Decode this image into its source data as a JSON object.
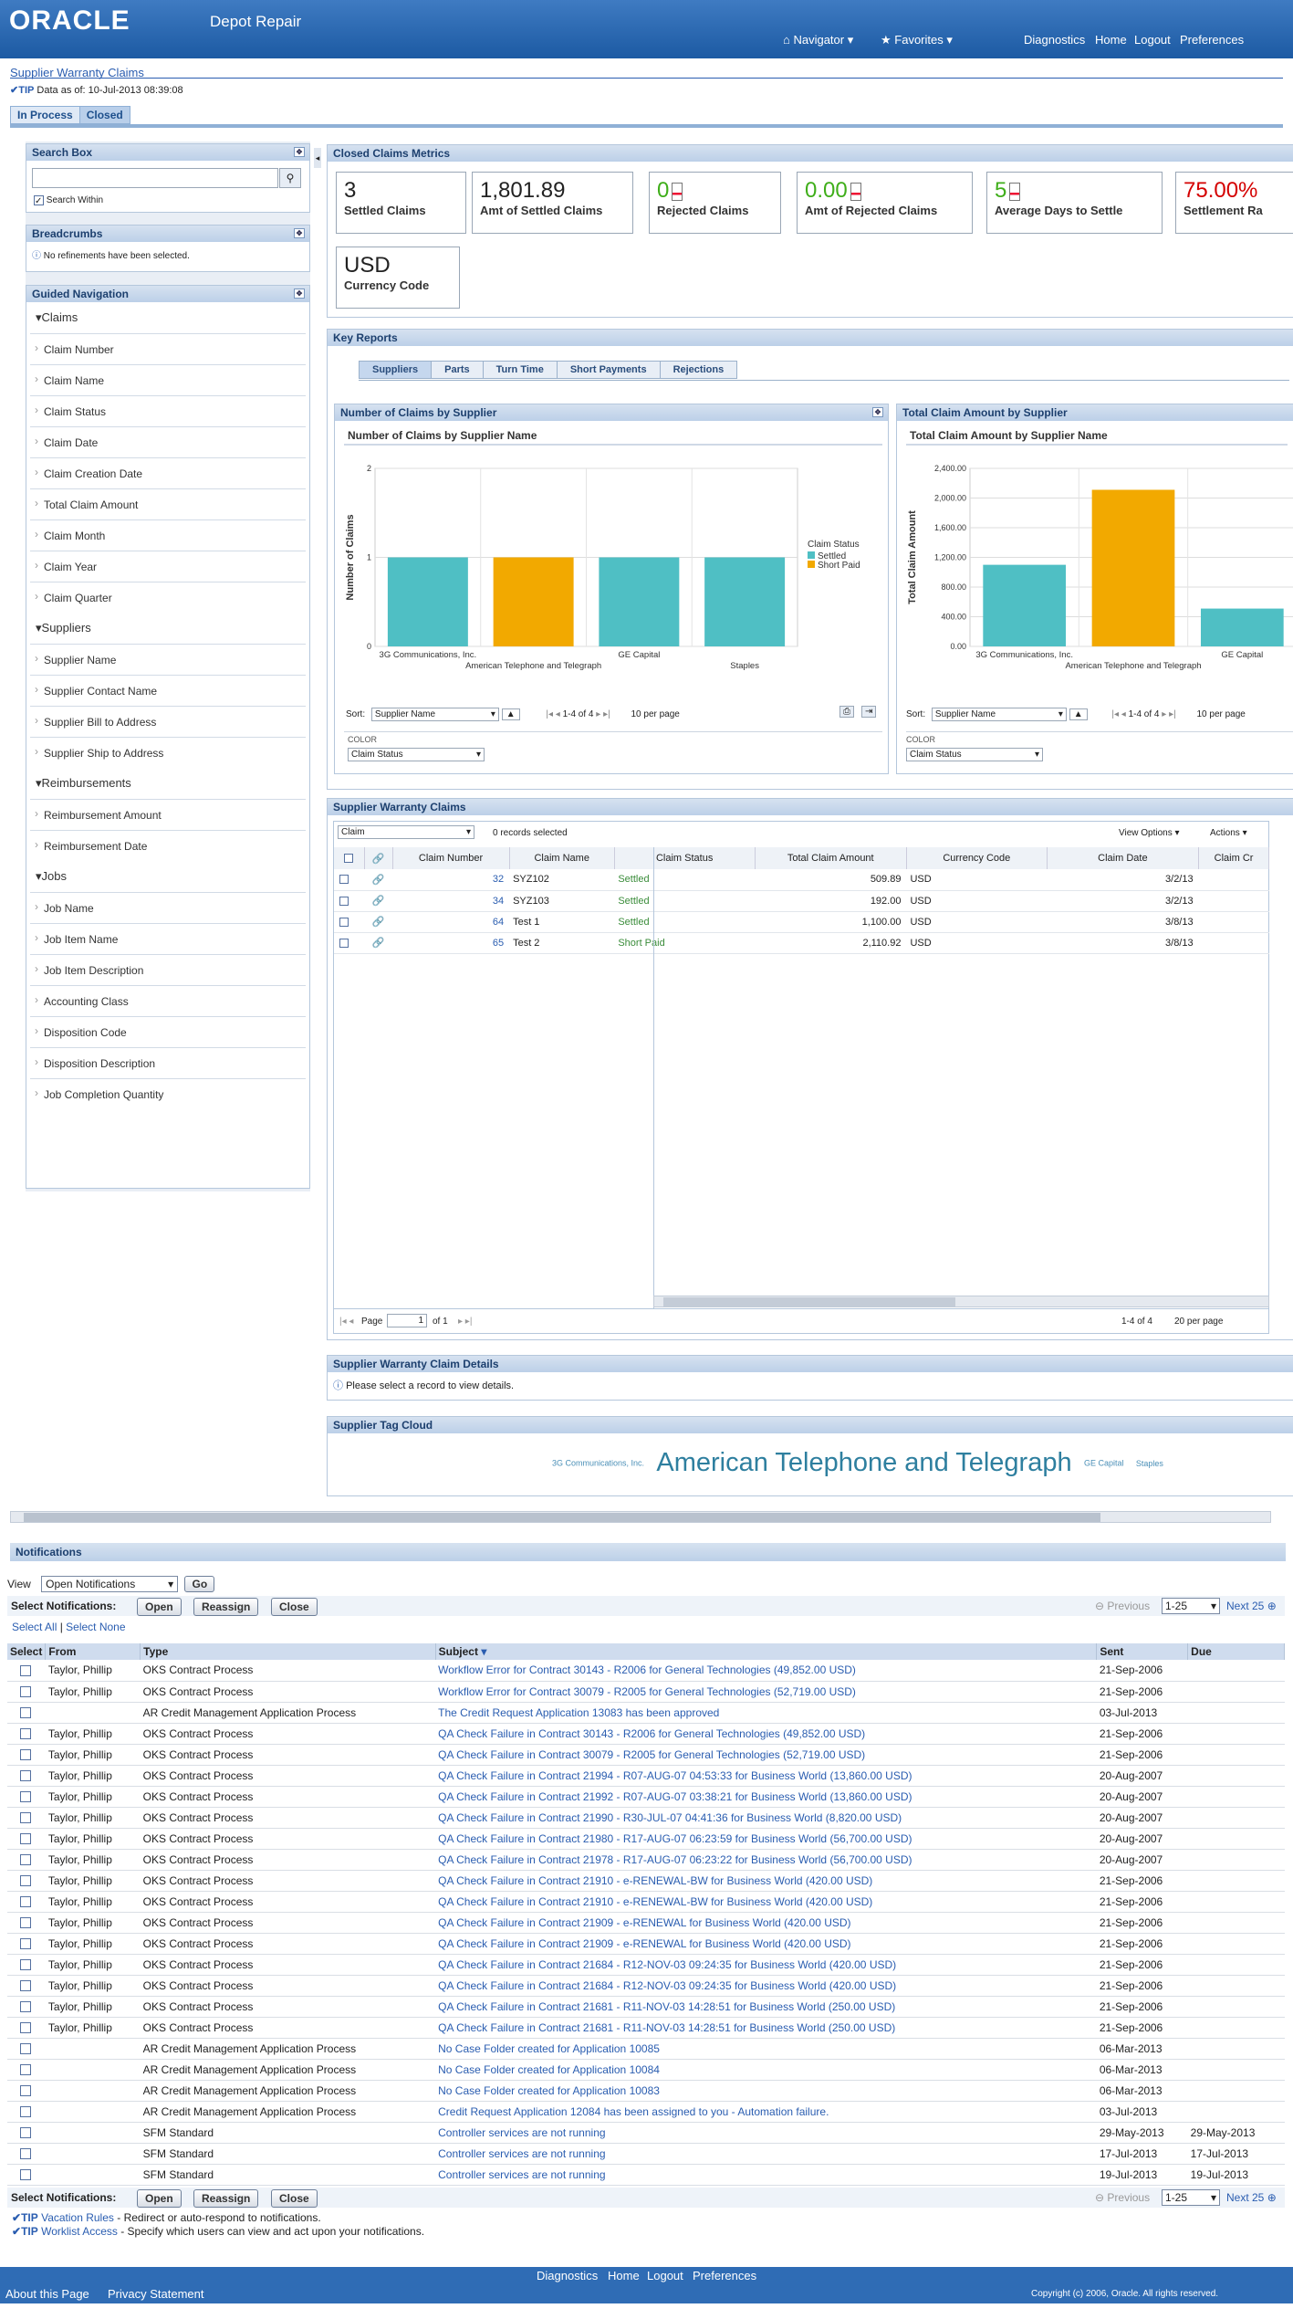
{
  "header": {
    "logo": "ORACLE",
    "app": "Depot Repair",
    "navigator": "Navigator",
    "favorites": "Favorites",
    "links": [
      "Diagnostics",
      "Home",
      "Logout",
      "Preferences"
    ]
  },
  "page": {
    "title": "Supplier Warranty Claims",
    "tip_label": "TIP",
    "tip": "Data as of:  10-Jul-2013 08:39:08",
    "tabs": [
      "In Process",
      "Closed"
    ]
  },
  "search": {
    "title": "Search Box",
    "search_within": "Search Within"
  },
  "breadcrumbs": {
    "title": "Breadcrumbs",
    "message": "No refinements have been selected."
  },
  "guided": {
    "title": "Guided Navigation",
    "groups": [
      {
        "name": "Claims",
        "items": [
          "Claim Number",
          "Claim Name",
          "Claim Status",
          "Claim Date",
          "Claim Creation Date",
          "Total Claim Amount",
          "Claim Month",
          "Claim Year",
          "Claim Quarter"
        ]
      },
      {
        "name": "Suppliers",
        "items": [
          "Supplier Name",
          "Supplier Contact Name",
          "Supplier Bill to Address",
          "Supplier Ship to Address"
        ]
      },
      {
        "name": "Reimbursements",
        "items": [
          "Reimbursement Amount",
          "Reimbursement Date"
        ]
      },
      {
        "name": "Jobs",
        "items": [
          "Job Name",
          "Job Item Name",
          "Job Item Description",
          "Accounting Class",
          "Disposition Code",
          "Disposition Description",
          "Job Completion Quantity"
        ]
      }
    ]
  },
  "metrics": {
    "title": "Closed Claims Metrics",
    "items": [
      {
        "value": "3",
        "label": "Settled Claims"
      },
      {
        "value": "1,801.89",
        "label": "Amt of Settled Claims"
      },
      {
        "value": "0",
        "label": "Rejected Claims"
      },
      {
        "value": "0.00",
        "label": "Amt of Rejected Claims"
      },
      {
        "value": "5",
        "label": "Average Days to Settle"
      },
      {
        "value": "75.00%",
        "label": "Settlement Ra"
      },
      {
        "value": "USD",
        "label": "Currency Code"
      }
    ]
  },
  "key_reports": {
    "title": "Key Reports",
    "tabs": [
      "Suppliers",
      "Parts",
      "Turn Time",
      "Short Payments",
      "Rejections"
    ]
  },
  "chart1": {
    "panel_title": "Number of Claims by Supplier",
    "sort_label": "Sort:",
    "sort_value": "Supplier Name",
    "pager": "1-4 of 4",
    "per_page": "10 per page",
    "color_label": "COLOR",
    "color_value": "Claim Status"
  },
  "chart2": {
    "panel_title": "Total Claim Amount by Supplier",
    "sort_label": "Sort:",
    "sort_value": "Supplier Name",
    "pager": "1-4 of 4",
    "per_page": "10 per page",
    "color_label": "COLOR",
    "color_value": "Claim Status"
  },
  "chart_data": [
    {
      "type": "bar",
      "title": "Number of Claims by Supplier Name",
      "xlabel": "Supplier Name",
      "ylabel": "Number of Claims",
      "ylim": [
        0,
        2
      ],
      "yticks": [
        "0",
        "1",
        "2"
      ],
      "categories": [
        "3G Communications, Inc.",
        "American Telephone and Telegraph",
        "GE Capital",
        "Staples"
      ],
      "values": [
        1,
        1,
        1,
        1
      ],
      "status": [
        "Settled",
        "Short Paid",
        "Settled",
        "Settled"
      ],
      "legend_title": "Claim Status",
      "legend": [
        {
          "name": "Settled",
          "color": "#4fbfc4"
        },
        {
          "name": "Short Paid",
          "color": "#f2a900"
        }
      ]
    },
    {
      "type": "bar",
      "title": "Total Claim Amount by Supplier Name",
      "xlabel": "Supplier Name",
      "ylabel": "Total Claim Amount",
      "ylim": [
        0,
        2400
      ],
      "yticks": [
        "0.00",
        "400.00",
        "800.00",
        "1,200.00",
        "1,600.00",
        "2,000.00",
        "2,400.00"
      ],
      "categories": [
        "3G Communications, Inc.",
        "American Telephone and Telegraph",
        "GE Capital"
      ],
      "values": [
        1100,
        2110.92,
        509.89
      ],
      "status": [
        "Settled",
        "Short Paid",
        "Settled"
      ]
    }
  ],
  "claims_table": {
    "title": "Supplier Warranty Claims",
    "filter": "Claim",
    "selected": "0 records selected",
    "view_options": "View Options",
    "actions": "Actions",
    "columns": [
      "Claim Number",
      "Claim Name",
      "Claim Status",
      "Total Claim Amount",
      "Currency Code",
      "Claim Date",
      "Claim Cr"
    ],
    "rows": [
      [
        "32",
        "SYZ102",
        "Settled",
        "509.89",
        "USD",
        "3/2/13"
      ],
      [
        "34",
        "SYZ103",
        "Settled",
        "192.00",
        "USD",
        "3/2/13"
      ],
      [
        "64",
        "Test 1",
        "Settled",
        "1,100.00",
        "USD",
        "3/8/13"
      ],
      [
        "65",
        "Test 2",
        "Short Paid",
        "2,110.92",
        "USD",
        "3/8/13"
      ]
    ],
    "page_label": "Page",
    "page_value": "1",
    "page_of": "of 1",
    "range": "1-4 of 4",
    "per_page": "20 per page"
  },
  "details": {
    "title": "Supplier Warranty Claim Details",
    "message": "Please select a record to view details."
  },
  "tagcloud": {
    "title": "Supplier Tag Cloud",
    "tags": [
      "3G Communications, Inc.",
      "American Telephone and Telegraph",
      "GE Capital",
      "Staples"
    ]
  },
  "notifications": {
    "title": "Notifications",
    "view_label": "View",
    "view_value": "Open Notifications",
    "go": "Go",
    "select_label": "Select Notifications:",
    "buttons": [
      "Open",
      "Reassign",
      "Close"
    ],
    "previous": "Previous",
    "range": "1-25",
    "next": "Next 25",
    "select_all": "Select All",
    "select_none": "Select None",
    "columns": [
      "Select",
      "From",
      "Type",
      "Subject",
      "Sent",
      "Due"
    ],
    "rows": [
      [
        "Taylor, Phillip",
        "OKS Contract Process",
        "Workflow Error for Contract 30143 - R2006 for General Technologies (49,852.00 USD)",
        "21-Sep-2006",
        ""
      ],
      [
        "Taylor, Phillip",
        "OKS Contract Process",
        "Workflow Error for Contract 30079 - R2005 for General Technologies (52,719.00 USD)",
        "21-Sep-2006",
        ""
      ],
      [
        "",
        "AR Credit Management Application Process",
        "The Credit Request Application 13083 has been approved",
        "03-Jul-2013",
        ""
      ],
      [
        "Taylor, Phillip",
        "OKS Contract Process",
        "QA Check Failure in Contract 30143 - R2006 for General Technologies (49,852.00 USD)",
        "21-Sep-2006",
        ""
      ],
      [
        "Taylor, Phillip",
        "OKS Contract Process",
        "QA Check Failure in Contract 30079 - R2005 for General Technologies (52,719.00 USD)",
        "21-Sep-2006",
        ""
      ],
      [
        "Taylor, Phillip",
        "OKS Contract Process",
        "QA Check Failure in Contract 21994 - R07-AUG-07 04:53:33 for Business World (13,860.00 USD)",
        "20-Aug-2007",
        ""
      ],
      [
        "Taylor, Phillip",
        "OKS Contract Process",
        "QA Check Failure in Contract 21992 - R07-AUG-07 03:38:21 for Business World (13,860.00 USD)",
        "20-Aug-2007",
        ""
      ],
      [
        "Taylor, Phillip",
        "OKS Contract Process",
        "QA Check Failure in Contract 21990 - R30-JUL-07 04:41:36 for Business World (8,820.00 USD)",
        "20-Aug-2007",
        ""
      ],
      [
        "Taylor, Phillip",
        "OKS Contract Process",
        "QA Check Failure in Contract 21980 - R17-AUG-07 06:23:59 for Business World (56,700.00 USD)",
        "20-Aug-2007",
        ""
      ],
      [
        "Taylor, Phillip",
        "OKS Contract Process",
        "QA Check Failure in Contract 21978 - R17-AUG-07 06:23:22 for Business World (56,700.00 USD)",
        "20-Aug-2007",
        ""
      ],
      [
        "Taylor, Phillip",
        "OKS Contract Process",
        "QA Check Failure in Contract 21910 - e-RENEWAL-BW for Business World (420.00 USD)",
        "21-Sep-2006",
        ""
      ],
      [
        "Taylor, Phillip",
        "OKS Contract Process",
        "QA Check Failure in Contract 21910 - e-RENEWAL-BW for Business World (420.00 USD)",
        "21-Sep-2006",
        ""
      ],
      [
        "Taylor, Phillip",
        "OKS Contract Process",
        "QA Check Failure in Contract 21909 - e-RENEWAL for Business World (420.00 USD)",
        "21-Sep-2006",
        ""
      ],
      [
        "Taylor, Phillip",
        "OKS Contract Process",
        "QA Check Failure in Contract 21909 - e-RENEWAL for Business World (420.00 USD)",
        "21-Sep-2006",
        ""
      ],
      [
        "Taylor, Phillip",
        "OKS Contract Process",
        "QA Check Failure in Contract 21684 - R12-NOV-03 09:24:35 for Business World (420.00 USD)",
        "21-Sep-2006",
        ""
      ],
      [
        "Taylor, Phillip",
        "OKS Contract Process",
        "QA Check Failure in Contract 21684 - R12-NOV-03 09:24:35 for Business World (420.00 USD)",
        "21-Sep-2006",
        ""
      ],
      [
        "Taylor, Phillip",
        "OKS Contract Process",
        "QA Check Failure in Contract 21681 - R11-NOV-03 14:28:51 for Business World (250.00 USD)",
        "21-Sep-2006",
        ""
      ],
      [
        "Taylor, Phillip",
        "OKS Contract Process",
        "QA Check Failure in Contract 21681 - R11-NOV-03 14:28:51 for Business World (250.00 USD)",
        "21-Sep-2006",
        ""
      ],
      [
        "",
        "AR Credit Management Application Process",
        "No Case Folder created for Application 10085",
        "06-Mar-2013",
        ""
      ],
      [
        "",
        "AR Credit Management Application Process",
        "No Case Folder created for Application 10084",
        "06-Mar-2013",
        ""
      ],
      [
        "",
        "AR Credit Management Application Process",
        "No Case Folder created for Application 10083",
        "06-Mar-2013",
        ""
      ],
      [
        "",
        "AR Credit Management Application Process",
        "Credit Request Application 12084 has been assigned to you - Automation failure.",
        "03-Jul-2013",
        ""
      ],
      [
        "",
        "SFM Standard",
        "Controller services are not running",
        "29-May-2013",
        "29-May-2013"
      ],
      [
        "",
        "SFM Standard",
        "Controller services are not running",
        "17-Jul-2013",
        "17-Jul-2013"
      ],
      [
        "",
        "SFM Standard",
        "Controller services are not running",
        "19-Jul-2013",
        "19-Jul-2013"
      ]
    ],
    "tips": [
      {
        "label": "TIP",
        "link": "Vacation Rules",
        "text": " - Redirect or auto-respond to notifications."
      },
      {
        "label": "TIP",
        "link": "Worklist Access",
        "text": " - Specify which users can view and act upon your notifications."
      }
    ]
  },
  "footer": {
    "links": [
      "Diagnostics",
      "Home",
      "Logout",
      "Preferences"
    ],
    "about": "About this Page",
    "privacy": "Privacy Statement",
    "copyright": "Copyright (c) 2006, Oracle. All rights reserved."
  }
}
